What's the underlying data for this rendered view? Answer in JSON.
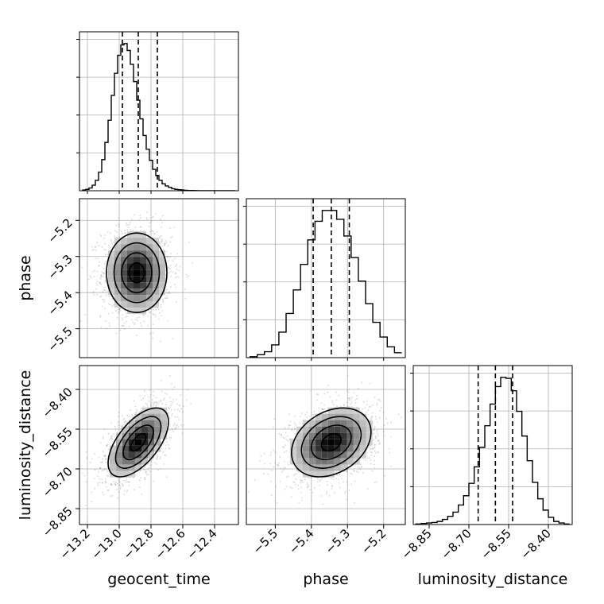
{
  "chart_data": {
    "type": "corner",
    "parameters": [
      "geocent_time",
      "phase",
      "luminosity_distance"
    ],
    "colors": {
      "line": "#000000",
      "grid": "#b0b0b0",
      "scatter": "#8c8c8c",
      "background": "#ffffff"
    },
    "grid": true,
    "axes": {
      "geocent_time": {
        "range": [
          -13.25,
          -12.25
        ],
        "ticks": [
          -13.2,
          -13.0,
          -12.8,
          -12.6,
          -12.4
        ],
        "tick_labels": [
          "−13.2",
          "−13.0",
          "−12.8",
          "−12.6",
          "−12.4"
        ],
        "label": "geocent_time"
      },
      "phase": {
        "range": [
          -5.58,
          -5.14
        ],
        "ticks": [
          -5.5,
          -5.4,
          -5.3,
          -5.2
        ],
        "tick_labels": [
          "−5.5",
          "−5.4",
          "−5.3",
          "−5.2"
        ],
        "label": "phase"
      },
      "luminosity_distance": {
        "range": [
          -8.91,
          -8.31
        ],
        "ticks": [
          -8.85,
          -8.7,
          -8.55,
          -8.4
        ],
        "tick_labels": [
          "−8.85",
          "−8.70",
          "−8.55",
          "−8.40"
        ],
        "label": "luminosity_distance"
      }
    },
    "histograms": [
      {
        "param": "geocent_time",
        "bin_edges": [
          -13.23,
          -13.21,
          -13.19,
          -13.17,
          -13.15,
          -13.13,
          -13.11,
          -13.09,
          -13.07,
          -13.05,
          -13.03,
          -13.01,
          -12.99,
          -12.97,
          -12.95,
          -12.93,
          -12.91,
          -12.89,
          -12.87,
          -12.85,
          -12.83,
          -12.81,
          -12.79,
          -12.77,
          -12.75,
          -12.73,
          -12.71,
          -12.69,
          -12.67,
          -12.65,
          -12.63,
          -12.61,
          -12.59,
          -12.57,
          -12.55,
          -12.53,
          -12.51,
          -12.49,
          -12.47,
          -12.45,
          -12.43,
          -12.41,
          -12.39,
          -12.37,
          -12.35,
          -12.33,
          -12.31,
          -12.29,
          -12.27
        ],
        "counts": [
          1,
          2,
          4,
          8,
          15,
          27,
          45,
          70,
          102,
          138,
          170,
          196,
          211,
          213,
          203,
          183,
          158,
          131,
          104,
          80,
          60,
          44,
          31,
          22,
          15,
          10,
          7,
          5,
          3,
          2,
          1.5,
          1,
          0.6,
          0.4,
          0.3,
          0.2,
          0.1,
          0.05,
          0,
          0,
          0,
          0,
          0,
          0,
          0,
          0,
          0,
          0
        ],
        "quantiles": [
          -12.98,
          -12.88,
          -12.76
        ]
      },
      {
        "param": "phase",
        "bin_edges": [
          -5.57,
          -5.55,
          -5.53,
          -5.51,
          -5.49,
          -5.47,
          -5.45,
          -5.43,
          -5.41,
          -5.39,
          -5.37,
          -5.35,
          -5.33,
          -5.31,
          -5.29,
          -5.27,
          -5.25,
          -5.23,
          -5.21,
          -5.19,
          -5.17,
          -5.15
        ],
        "counts": [
          1,
          3,
          6,
          13,
          26,
          45,
          69,
          95,
          120,
          139,
          150,
          150,
          141,
          124,
          102,
          78,
          55,
          36,
          21,
          11,
          5
        ],
        "quantiles": [
          -5.395,
          -5.345,
          -5.295
        ]
      },
      {
        "param": "luminosity_distance",
        "bin_edges": [
          -8.9,
          -8.88,
          -8.86,
          -8.84,
          -8.82,
          -8.8,
          -8.78,
          -8.76,
          -8.74,
          -8.72,
          -8.7,
          -8.68,
          -8.66,
          -8.64,
          -8.62,
          -8.6,
          -8.58,
          -8.56,
          -8.54,
          -8.52,
          -8.5,
          -8.48,
          -8.46,
          -8.44,
          -8.42,
          -8.4,
          -8.38,
          -8.36,
          -8.34,
          -8.32
        ],
        "counts": [
          0.5,
          1,
          1.5,
          2,
          3,
          5,
          8,
          12,
          19,
          28,
          40,
          56,
          75,
          96,
          117,
          134,
          143,
          142,
          130,
          110,
          86,
          62,
          41,
          25,
          14,
          7,
          3,
          1.5,
          0.5
        ],
        "quantiles": [
          -8.665,
          -8.6,
          -8.535
        ]
      }
    ],
    "pair_plots": [
      {
        "x": "geocent_time",
        "y": "phase",
        "mean": [
          -12.89,
          -5.345
        ],
        "sigma": [
          0.095,
          0.055
        ],
        "correlation": 0.0,
        "contour_levels_sigma": [
          0.5,
          1.0,
          1.5,
          2.0
        ]
      },
      {
        "x": "geocent_time",
        "y": "luminosity_distance",
        "mean": [
          -12.88,
          -8.6
        ],
        "sigma": [
          0.095,
          0.065
        ],
        "correlation": 0.6,
        "contour_levels_sigma": [
          0.5,
          1.0,
          1.5,
          2.0
        ]
      },
      {
        "x": "phase",
        "y": "luminosity_distance",
        "mean": [
          -5.345,
          -8.6
        ],
        "sigma": [
          0.055,
          0.065
        ],
        "correlation": 0.3,
        "contour_levels_sigma": [
          0.5,
          1.0,
          1.5,
          2.0
        ]
      }
    ]
  }
}
